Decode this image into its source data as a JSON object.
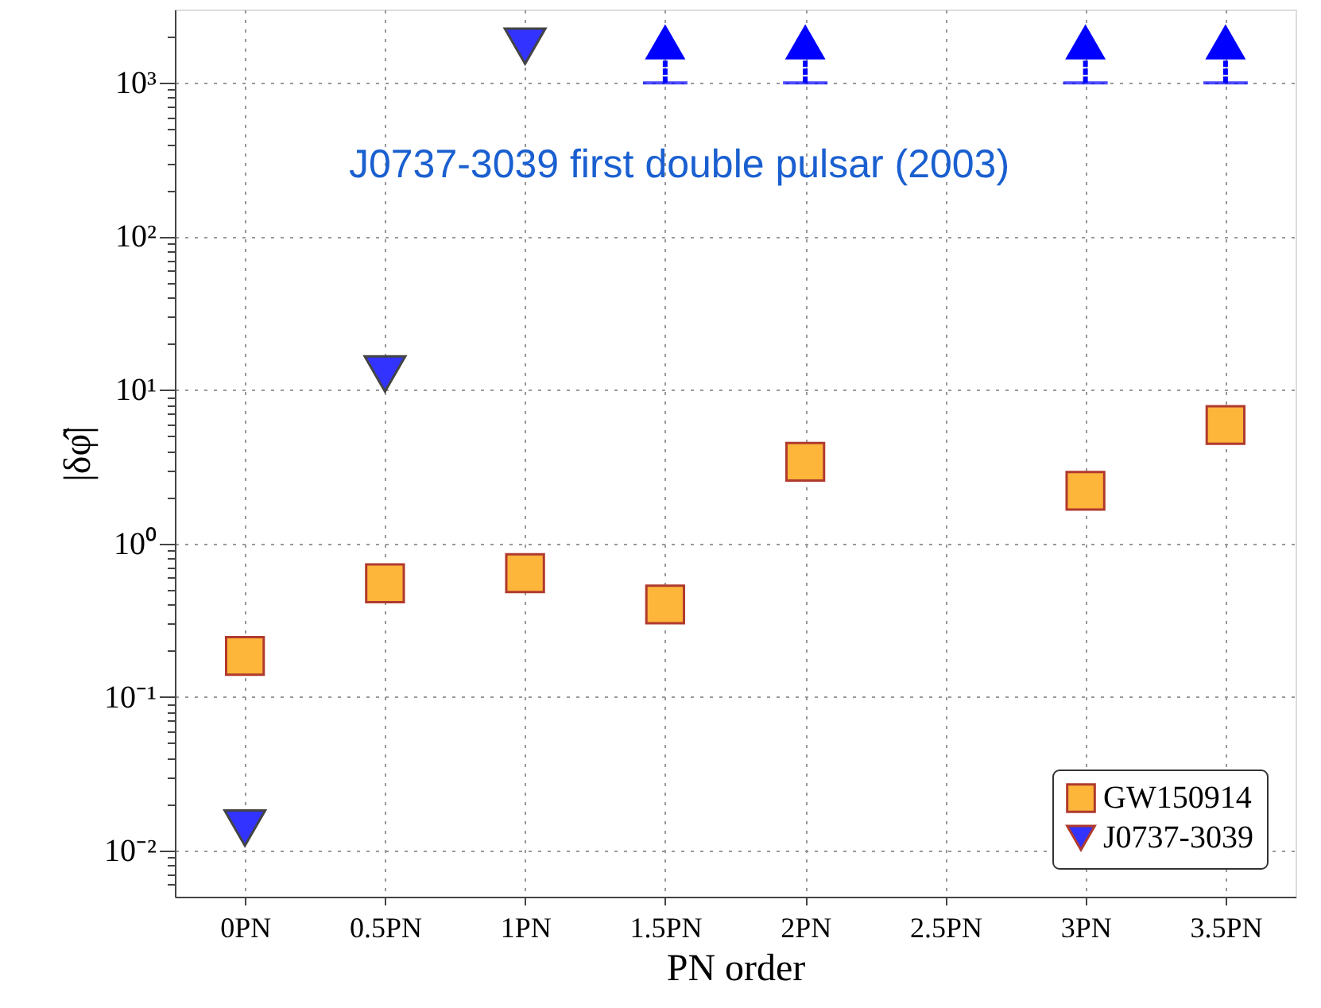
{
  "chart_data": {
    "type": "scatter",
    "xlabel": "PN order",
    "ylabel": "|δφ̂|",
    "categories": [
      "0PN",
      "0.5PN",
      "1PN",
      "1.5PN",
      "2PN",
      "2.5PN",
      "3PN",
      "3.5PN"
    ],
    "series": [
      {
        "name": "GW150914",
        "color": "#fdb53a",
        "marker": "square",
        "values": [
          0.185,
          0.55,
          0.64,
          0.4,
          3.4,
          null,
          2.2,
          5.9
        ]
      },
      {
        "name": "J0737-3039",
        "color": "#3333ff",
        "marker": "triangle-down",
        "values": [
          0.014,
          12.7,
          1730,
          null,
          null,
          null,
          null,
          null
        ]
      },
      {
        "color": "#0000ff",
        "marker": "triangle",
        "values": [
          null,
          null,
          null,
          1850,
          1850,
          null,
          1850,
          1850
        ],
        "errors": [
          null,
          null,
          null,
          [
            1000,
            1850
          ],
          [
            1000,
            1850
          ],
          null,
          [
            1000,
            1850
          ],
          [
            1000,
            1850
          ]
        ]
      }
    ],
    "log": true,
    "ylim": [
      0.005,
      3000
    ],
    "yticks": [
      {
        "value": 0.006,
        "label": null
      },
      {
        "value": 0.007,
        "label": null
      },
      {
        "value": 0.008,
        "label": null
      },
      {
        "value": 0.009,
        "label": null
      },
      {
        "value": 0.01,
        "label": "10⁻²"
      },
      {
        "value": 0.02,
        "label": null
      },
      {
        "value": 0.03,
        "label": null
      },
      {
        "value": 0.04,
        "label": null
      },
      {
        "value": 0.05,
        "label": null
      },
      {
        "value": 0.06,
        "label": null
      },
      {
        "value": 0.07,
        "label": null
      },
      {
        "value": 0.08,
        "label": null
      },
      {
        "value": 0.09,
        "label": null
      },
      {
        "value": 0.1,
        "label": "10⁻¹"
      },
      {
        "value": 0.2,
        "label": null
      },
      {
        "value": 0.3,
        "label": null
      },
      {
        "value": 0.4,
        "label": null
      },
      {
        "value": 0.5,
        "label": null
      },
      {
        "value": 0.6,
        "label": null
      },
      {
        "value": 0.7,
        "label": null
      },
      {
        "value": 0.8,
        "label": null
      },
      {
        "value": 0.9,
        "label": null
      },
      {
        "value": 1,
        "label": "10⁰"
      },
      {
        "value": 2,
        "label": null
      },
      {
        "value": 3,
        "label": null
      },
      {
        "value": 4,
        "label": null
      },
      {
        "value": 5,
        "label": null
      },
      {
        "value": 6,
        "label": null
      },
      {
        "value": 7,
        "label": null
      },
      {
        "value": 8,
        "label": null
      },
      {
        "value": 9,
        "label": null
      },
      {
        "value": 10,
        "label": "10¹"
      },
      {
        "value": 20,
        "label": null
      },
      {
        "value": 30,
        "label": null
      },
      {
        "value": 40,
        "label": null
      },
      {
        "value": 50,
        "label": null
      },
      {
        "value": 60,
        "label": null
      },
      {
        "value": 70,
        "label": null
      },
      {
        "value": 80,
        "label": null
      },
      {
        "value": 90,
        "label": null
      },
      {
        "value": 100,
        "label": "10²"
      },
      {
        "value": 200,
        "label": null
      },
      {
        "value": 300,
        "label": null
      },
      {
        "value": 400,
        "label": null
      },
      {
        "value": 500,
        "label": null
      },
      {
        "value": 600,
        "label": null
      },
      {
        "value": 700,
        "label": null
      },
      {
        "value": 800,
        "label": null
      },
      {
        "value": 900,
        "label": null
      },
      {
        "value": 1000,
        "label": "10³"
      },
      {
        "value": 2000,
        "label": null
      }
    ],
    "grid": true,
    "legend": "bottom right",
    "annotations": [
      "J0737-3039 first double pulsar (2003)"
    ]
  }
}
